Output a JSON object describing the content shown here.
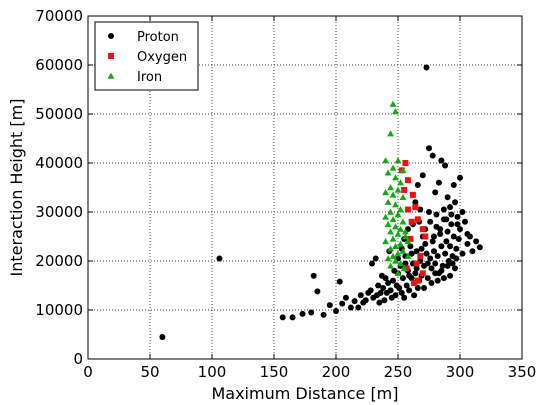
{
  "chart_data": {
    "type": "scatter",
    "xlabel": "Maximum Distance [m]",
    "ylabel": "Interaction Height [m]",
    "xlim": [
      0,
      350
    ],
    "ylim": [
      0,
      70000
    ],
    "xticks": [
      0,
      50,
      100,
      150,
      200,
      250,
      300,
      350
    ],
    "yticks": [
      0,
      10000,
      20000,
      30000,
      40000,
      50000,
      60000,
      70000
    ],
    "grid": true,
    "legend_position": "top-left",
    "series": [
      {
        "name": "Proton",
        "marker": "circle",
        "color": "#000000",
        "points": [
          [
            60,
            4500
          ],
          [
            106,
            20500
          ],
          [
            157,
            8500
          ],
          [
            165,
            8500
          ],
          [
            173,
            9200
          ],
          [
            180,
            9500
          ],
          [
            182,
            17000
          ],
          [
            185,
            13800
          ],
          [
            190,
            9000
          ],
          [
            195,
            11000
          ],
          [
            200,
            9800
          ],
          [
            203,
            15800
          ],
          [
            205,
            11300
          ],
          [
            208,
            12500
          ],
          [
            212,
            10500
          ],
          [
            215,
            11800
          ],
          [
            218,
            10500
          ],
          [
            220,
            13000
          ],
          [
            222,
            11500
          ],
          [
            224,
            12000
          ],
          [
            226,
            13500
          ],
          [
            228,
            14000
          ],
          [
            229,
            19500
          ],
          [
            230,
            12500
          ],
          [
            232,
            20500
          ],
          [
            233,
            13000
          ],
          [
            234,
            15000
          ],
          [
            235,
            11500
          ],
          [
            236,
            13500
          ],
          [
            237,
            17000
          ],
          [
            238,
            14500
          ],
          [
            239,
            12000
          ],
          [
            240,
            16500
          ],
          [
            241,
            13500
          ],
          [
            242,
            15500
          ],
          [
            243,
            22000
          ],
          [
            244,
            14000
          ],
          [
            245,
            12500
          ],
          [
            246,
            16000
          ],
          [
            247,
            18000
          ],
          [
            248,
            13000
          ],
          [
            249,
            15000
          ],
          [
            250,
            17500
          ],
          [
            251,
            14500
          ],
          [
            252,
            19000
          ],
          [
            253,
            13500
          ],
          [
            254,
            16500
          ],
          [
            255,
            12500
          ],
          [
            256,
            21000
          ],
          [
            257,
            15000
          ],
          [
            258,
            18000
          ],
          [
            259,
            14000
          ],
          [
            260,
            23000
          ],
          [
            261,
            16500
          ],
          [
            262,
            19500
          ],
          [
            263,
            13000
          ],
          [
            264,
            17500
          ],
          [
            265,
            22000
          ],
          [
            266,
            14500
          ],
          [
            267,
            28000
          ],
          [
            268,
            20000
          ],
          [
            269,
            17000
          ],
          [
            270,
            25000
          ],
          [
            271,
            19000
          ],
          [
            272,
            23500
          ],
          [
            273,
            21500
          ],
          [
            274,
            16500
          ],
          [
            275,
            30000
          ],
          [
            276,
            20500
          ],
          [
            277,
            18500
          ],
          [
            278,
            24000
          ],
          [
            279,
            22000
          ],
          [
            280,
            19500
          ],
          [
            281,
            27000
          ],
          [
            282,
            21000
          ],
          [
            283,
            17500
          ],
          [
            284,
            25500
          ],
          [
            285,
            23000
          ],
          [
            286,
            19000
          ],
          [
            287,
            28500
          ],
          [
            288,
            21500
          ],
          [
            289,
            24000
          ],
          [
            290,
            26000
          ],
          [
            291,
            20000
          ],
          [
            292,
            23000
          ],
          [
            293,
            27500
          ],
          [
            294,
            21000
          ],
          [
            295,
            25000
          ],
          [
            296,
            18500
          ],
          [
            297,
            22500
          ],
          [
            298,
            29000
          ],
          [
            299,
            24500
          ],
          [
            300,
            26500
          ],
          [
            302,
            21500
          ],
          [
            304,
            28000
          ],
          [
            306,
            23500
          ],
          [
            308,
            25000
          ],
          [
            310,
            22000
          ],
          [
            313,
            24000
          ],
          [
            316,
            22800
          ],
          [
            273,
            59500
          ],
          [
            275,
            43000
          ],
          [
            278,
            41500
          ],
          [
            285,
            40500
          ],
          [
            288,
            39500
          ],
          [
            295,
            35500
          ],
          [
            300,
            37000
          ],
          [
            270,
            37500
          ],
          [
            266,
            35500
          ],
          [
            280,
            34000
          ],
          [
            283,
            36000
          ],
          [
            290,
            33000
          ],
          [
            292,
            31000
          ],
          [
            264,
            32000
          ],
          [
            268,
            30500
          ],
          [
            262,
            27500
          ],
          [
            276,
            28000
          ],
          [
            281,
            29500
          ],
          [
            287,
            30500
          ],
          [
            296,
            32000
          ],
          [
            302,
            30000
          ],
          [
            258,
            26500
          ],
          [
            255,
            24500
          ],
          [
            272,
            26500
          ],
          [
            279,
            25000
          ],
          [
            284,
            26500
          ],
          [
            289,
            28500
          ],
          [
            293,
            29500
          ],
          [
            298,
            27500
          ],
          [
            306,
            25500
          ],
          [
            250,
            20500
          ],
          [
            253,
            22500
          ],
          [
            256,
            19500
          ],
          [
            259,
            17000
          ],
          [
            261,
            21500
          ],
          [
            263,
            15500
          ],
          [
            265,
            18500
          ],
          [
            267,
            16000
          ],
          [
            269,
            22500
          ],
          [
            271,
            14500
          ],
          [
            274,
            19500
          ],
          [
            277,
            15500
          ],
          [
            280,
            17500
          ],
          [
            282,
            16000
          ],
          [
            285,
            18000
          ],
          [
            287,
            16500
          ],
          [
            290,
            19000
          ],
          [
            292,
            17000
          ],
          [
            294,
            19500
          ],
          [
            297,
            20500
          ]
        ]
      },
      {
        "name": "Oxygen",
        "marker": "square",
        "color": "#ee1111",
        "points": [
          [
            256,
            40000
          ],
          [
            253,
            38500
          ],
          [
            258,
            36500
          ],
          [
            255,
            34500
          ],
          [
            262,
            33500
          ],
          [
            264,
            31000
          ],
          [
            258,
            30500
          ],
          [
            266,
            28500
          ],
          [
            261,
            28000
          ],
          [
            270,
            26500
          ],
          [
            272,
            25000
          ],
          [
            260,
            24500
          ],
          [
            268,
            21000
          ],
          [
            265,
            19500
          ],
          [
            257,
            18500
          ],
          [
            270,
            17500
          ],
          [
            263,
            15500
          ],
          [
            266,
            16000
          ]
        ]
      },
      {
        "name": "Iron",
        "marker": "triangle",
        "color": "#11aa11",
        "points": [
          [
            246,
            52000
          ],
          [
            248,
            50500
          ],
          [
            244,
            46000
          ],
          [
            240,
            40500
          ],
          [
            250,
            40500
          ],
          [
            246,
            39000
          ],
          [
            254,
            38500
          ],
          [
            242,
            38000
          ],
          [
            248,
            37000
          ],
          [
            252,
            36000
          ],
          [
            244,
            35000
          ],
          [
            250,
            34500
          ],
          [
            240,
            34000
          ],
          [
            246,
            33500
          ],
          [
            254,
            33000
          ],
          [
            242,
            32000
          ],
          [
            248,
            31500
          ],
          [
            252,
            30500
          ],
          [
            244,
            30000
          ],
          [
            250,
            29500
          ],
          [
            240,
            29000
          ],
          [
            246,
            28500
          ],
          [
            254,
            28000
          ],
          [
            242,
            27500
          ],
          [
            248,
            27000
          ],
          [
            252,
            26500
          ],
          [
            244,
            26000
          ],
          [
            250,
            25500
          ],
          [
            256,
            25000
          ],
          [
            246,
            24500
          ],
          [
            240,
            24000
          ],
          [
            252,
            23500
          ],
          [
            248,
            23000
          ],
          [
            244,
            22500
          ],
          [
            254,
            22000
          ],
          [
            250,
            21500
          ],
          [
            246,
            21000
          ],
          [
            242,
            20500
          ],
          [
            256,
            26000
          ],
          [
            258,
            24000
          ],
          [
            248,
            20000
          ],
          [
            252,
            19500
          ],
          [
            255,
            18500
          ],
          [
            250,
            17500
          ],
          [
            258,
            21000
          ],
          [
            244,
            19000
          ]
        ]
      }
    ]
  }
}
